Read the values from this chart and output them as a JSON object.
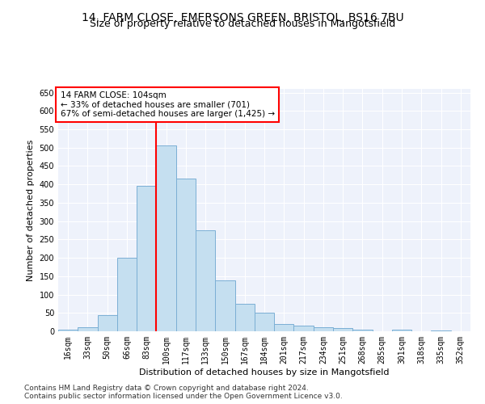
{
  "title1": "14, FARM CLOSE, EMERSONS GREEN, BRISTOL, BS16 7BU",
  "title2": "Size of property relative to detached houses in Mangotsfield",
  "xlabel": "Distribution of detached houses by size in Mangotsfield",
  "ylabel": "Number of detached properties",
  "annotation_line1": "14 FARM CLOSE: 104sqm",
  "annotation_line2": "← 33% of detached houses are smaller (701)",
  "annotation_line3": "67% of semi-detached houses are larger (1,425) →",
  "footer1": "Contains HM Land Registry data © Crown copyright and database right 2024.",
  "footer2": "Contains public sector information licensed under the Open Government Licence v3.0.",
  "categories": [
    "16sqm",
    "33sqm",
    "50sqm",
    "66sqm",
    "83sqm",
    "100sqm",
    "117sqm",
    "133sqm",
    "150sqm",
    "167sqm",
    "184sqm",
    "201sqm",
    "217sqm",
    "234sqm",
    "251sqm",
    "268sqm",
    "285sqm",
    "301sqm",
    "318sqm",
    "335sqm",
    "352sqm"
  ],
  "values": [
    5,
    10,
    45,
    200,
    395,
    507,
    415,
    275,
    138,
    75,
    50,
    20,
    15,
    10,
    8,
    5,
    0,
    5,
    0,
    2,
    1
  ],
  "bar_color": "#c5dff0",
  "bar_edge_color": "#7bafd4",
  "highlight_bar_index": 5,
  "highlight_color": "red",
  "ylim": [
    0,
    660
  ],
  "yticks": [
    0,
    50,
    100,
    150,
    200,
    250,
    300,
    350,
    400,
    450,
    500,
    550,
    600,
    650
  ],
  "background_color": "#eef2fb",
  "title1_fontsize": 10,
  "title2_fontsize": 9,
  "axis_fontsize": 8,
  "tick_fontsize": 7,
  "annotation_fontsize": 7.5,
  "footer_fontsize": 6.5
}
